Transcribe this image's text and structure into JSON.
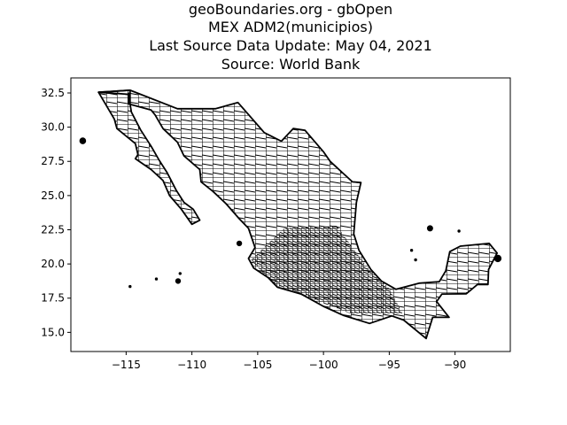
{
  "title": {
    "line1": "geoBoundaries.org - gbOpen",
    "line2": "MEX ADM2(municipios)",
    "line3": "Last Source Data Update: May 04, 2021",
    "line4": "Source: World Bank"
  },
  "chart_data": {
    "type": "map",
    "xlabel": "",
    "ylabel": "",
    "xlim": [
      -119.2,
      -85.8
    ],
    "ylim": [
      13.6,
      33.6
    ],
    "x_ticks": [
      -115,
      -110,
      -105,
      -100,
      -95,
      -90
    ],
    "y_ticks": [
      15.0,
      17.5,
      20.0,
      22.5,
      25.0,
      27.5,
      30.0,
      32.5
    ],
    "x_tick_labels": [
      "−115",
      "−110",
      "−105",
      "−100",
      "−95",
      "−90"
    ],
    "y_tick_labels": [
      "15.0",
      "17.5",
      "20.0",
      "22.5",
      "25.0",
      "27.5",
      "30.0",
      "32.5"
    ],
    "grid": false,
    "outline_color": "#000000",
    "background": "#ffffff",
    "regions": {
      "mainland": [
        [
          -117.1,
          32.55
        ],
        [
          -114.7,
          32.7
        ],
        [
          -111.1,
          31.35
        ],
        [
          -108.2,
          31.35
        ],
        [
          -106.5,
          31.8
        ],
        [
          -104.5,
          29.6
        ],
        [
          -103.2,
          28.97
        ],
        [
          -102.3,
          29.9
        ],
        [
          -101.4,
          29.77
        ],
        [
          -100.0,
          28.2
        ],
        [
          -99.5,
          27.5
        ],
        [
          -97.8,
          26.0
        ],
        [
          -97.15,
          25.95
        ],
        [
          -97.5,
          24.5
        ],
        [
          -97.7,
          22.2
        ],
        [
          -97.3,
          21.0
        ],
        [
          -96.4,
          19.6
        ],
        [
          -95.6,
          18.75
        ],
        [
          -94.5,
          18.15
        ],
        [
          -92.7,
          18.6
        ],
        [
          -91.2,
          18.7
        ],
        [
          -90.7,
          19.5
        ],
        [
          -90.4,
          20.9
        ],
        [
          -89.6,
          21.3
        ],
        [
          -87.4,
          21.5
        ],
        [
          -86.8,
          20.8
        ],
        [
          -87.45,
          19.6
        ],
        [
          -87.5,
          18.5
        ],
        [
          -88.3,
          18.5
        ],
        [
          -89.15,
          17.82
        ],
        [
          -91.0,
          17.8
        ],
        [
          -91.4,
          17.25
        ],
        [
          -90.45,
          16.1
        ],
        [
          -91.7,
          16.1
        ],
        [
          -92.2,
          14.55
        ],
        [
          -93.9,
          15.9
        ],
        [
          -94.8,
          16.2
        ],
        [
          -96.5,
          15.65
        ],
        [
          -98.5,
          16.25
        ],
        [
          -100.0,
          16.9
        ],
        [
          -101.7,
          17.8
        ],
        [
          -103.5,
          18.3
        ],
        [
          -104.2,
          19.0
        ],
        [
          -105.3,
          19.7
        ],
        [
          -105.7,
          20.4
        ],
        [
          -105.2,
          21.2
        ],
        [
          -105.7,
          22.6
        ],
        [
          -106.4,
          23.3
        ],
        [
          -107.4,
          24.4
        ],
        [
          -108.4,
          25.3
        ],
        [
          -109.3,
          26.0
        ],
        [
          -109.4,
          26.9
        ],
        [
          -110.6,
          27.9
        ],
        [
          -111.1,
          28.9
        ],
        [
          -112.2,
          29.9
        ],
        [
          -112.8,
          30.9
        ],
        [
          -113.1,
          31.25
        ],
        [
          -114.8,
          31.7
        ],
        [
          -114.8,
          32.4
        ],
        [
          -117.1,
          32.55
        ]
      ],
      "baja_california": [
        [
          -117.1,
          32.55
        ],
        [
          -115.9,
          30.6
        ],
        [
          -115.7,
          29.9
        ],
        [
          -114.3,
          28.8
        ],
        [
          -114.1,
          28.0
        ],
        [
          -114.3,
          27.7
        ],
        [
          -113.1,
          26.9
        ],
        [
          -112.2,
          26.1
        ],
        [
          -111.7,
          25.0
        ],
        [
          -110.8,
          24.0
        ],
        [
          -110.0,
          22.9
        ],
        [
          -109.4,
          23.2
        ],
        [
          -109.9,
          24.0
        ],
        [
          -110.6,
          24.5
        ],
        [
          -111.2,
          25.4
        ],
        [
          -111.9,
          26.7
        ],
        [
          -112.5,
          27.6
        ],
        [
          -113.1,
          28.6
        ],
        [
          -113.9,
          29.8
        ],
        [
          -114.6,
          31.1
        ],
        [
          -114.7,
          31.7
        ],
        [
          -114.7,
          32.7
        ],
        [
          -117.1,
          32.55
        ]
      ],
      "islands": [
        {
          "lon": -118.3,
          "lat": 29.0,
          "r": 0.22
        },
        {
          "lon": -111.05,
          "lat": 18.75,
          "r": 0.18
        },
        {
          "lon": -110.9,
          "lat": 19.3,
          "r": 0.08
        },
        {
          "lon": -114.7,
          "lat": 18.35,
          "r": 0.08
        },
        {
          "lon": -112.7,
          "lat": 18.9,
          "r": 0.05
        },
        {
          "lon": -106.4,
          "lat": 21.5,
          "r": 0.18
        },
        {
          "lon": -91.9,
          "lat": 22.6,
          "r": 0.2
        },
        {
          "lon": -89.7,
          "lat": 22.4,
          "r": 0.06
        },
        {
          "lon": -86.75,
          "lat": 20.4,
          "r": 0.25
        },
        {
          "lon": -93.0,
          "lat": 20.3,
          "r": 0.05
        },
        {
          "lon": -93.3,
          "lat": 21.0,
          "r": 0.05
        }
      ]
    }
  }
}
